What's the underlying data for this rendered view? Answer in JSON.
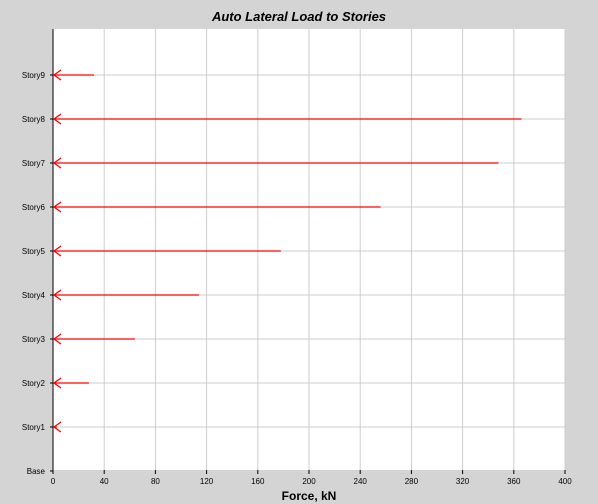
{
  "chart_data": {
    "type": "bar",
    "orientation": "horizontal",
    "title": "Auto Lateral Load to Stories",
    "xlabel": "Force, kN",
    "ylabel": "",
    "xlim": [
      0,
      400
    ],
    "xticks": [
      0,
      40,
      80,
      120,
      160,
      200,
      240,
      280,
      320,
      360,
      400
    ],
    "categories": [
      "Base",
      "Story1",
      "Story2",
      "Story3",
      "Story4",
      "Story5",
      "Story6",
      "Story7",
      "Story8",
      "Story9"
    ],
    "values": [
      0,
      3,
      28,
      64,
      114,
      178,
      256,
      348,
      366,
      32
    ],
    "grid": true,
    "legend": "none",
    "arrow_color": "#ff0000",
    "plot_background": "#ffffff",
    "window_background": "#d4d4d4",
    "gridline_color": "#cccccc"
  }
}
